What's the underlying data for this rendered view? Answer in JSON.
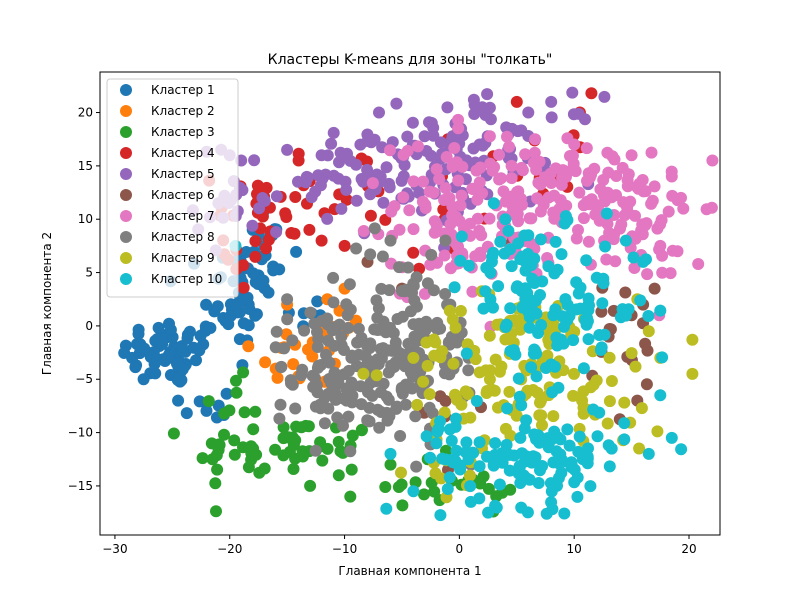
{
  "chart_data": {
    "type": "scatter",
    "title": "Кластеры K-means для зоны \"толкать\"",
    "xlabel": "Главная компонента 1",
    "ylabel": "Главная компонента 2",
    "xlim": [
      -31.3,
      22.7
    ],
    "ylim": [
      -19.6,
      23.8
    ],
    "xticks": [
      -30,
      -20,
      -10,
      0,
      10,
      20
    ],
    "yticks": [
      -15,
      -10,
      -5,
      0,
      5,
      10,
      15,
      20
    ],
    "grid": false,
    "legend_position": "top-left",
    "series": [
      {
        "name": "Кластер 1",
        "color": "#1f77b4",
        "centers": [
          [
            -25,
            -2.5,
            2.2,
            1.6,
            60
          ],
          [
            -19.5,
            3,
            1.4,
            2.5,
            40
          ],
          [
            -17,
            6.5,
            1.2,
            2.8,
            20
          ],
          [
            -22,
            -8,
            1.2,
            1.2,
            8
          ],
          [
            -13,
            1,
            1.2,
            1.2,
            6
          ]
        ],
        "extra": [
          [
            -28.5,
            -3
          ],
          [
            -27.5,
            -5
          ],
          [
            -24.5,
            -7
          ],
          [
            -18,
            9
          ],
          [
            -17,
            7.5
          ]
        ]
      },
      {
        "name": "Кластер 2",
        "color": "#ff7f0e",
        "centers": [
          [
            -13,
            -2.5,
            2.5,
            2,
            22
          ],
          [
            -11,
            0,
            1,
            1,
            6
          ]
        ],
        "extra": [
          [
            -15,
            2
          ],
          [
            -10,
            3.5
          ],
          [
            -9,
            0.5
          ],
          [
            -11.5,
            2.5
          ],
          [
            -16,
            -4
          ]
        ]
      },
      {
        "name": "Кластер 3",
        "color": "#2ca02c",
        "centers": [
          [
            -15,
            -11.5,
            4,
            1.4,
            55
          ],
          [
            -20,
            -7.5,
            1.3,
            1.3,
            8
          ],
          [
            -3,
            -14.5,
            3,
            1.2,
            15
          ],
          [
            2,
            -15.5,
            1.5,
            1,
            8
          ]
        ],
        "extra": [
          [
            -9.5,
            -16
          ],
          [
            -13,
            -15
          ],
          [
            -21.5,
            -12.5
          ],
          [
            -10.5,
            -14
          ],
          [
            -6,
            -13
          ]
        ]
      },
      {
        "name": "Кластер 4",
        "color": "#d62728",
        "centers": [
          [
            -17,
            11,
            2.2,
            2.2,
            28
          ],
          [
            -18,
            7,
            1.2,
            2.2,
            12
          ],
          [
            -8,
            12,
            2.5,
            2,
            10
          ],
          [
            -2,
            10,
            2,
            2,
            8
          ],
          [
            7,
            15.5,
            3,
            2,
            10
          ]
        ],
        "extra": [
          [
            11.5,
            21.8
          ],
          [
            10.5,
            20
          ],
          [
            -12,
            8
          ],
          [
            -10,
            7.5
          ],
          [
            -14,
            15.5
          ],
          [
            -1,
            17.5
          ],
          [
            5,
            21
          ]
        ]
      },
      {
        "name": "Кластер 5",
        "color": "#9467bd",
        "centers": [
          [
            -19,
            12,
            2,
            2.5,
            25
          ],
          [
            -5,
            14.5,
            4,
            2.5,
            90
          ],
          [
            4,
            17.5,
            4,
            2,
            45
          ],
          [
            -11,
            13.5,
            2,
            1.8,
            15
          ]
        ],
        "extra": [
          [
            -20,
            16
          ],
          [
            -19,
            15.5
          ],
          [
            -7,
            20
          ],
          [
            2,
            20.5
          ],
          [
            6,
            20
          ],
          [
            8,
            21
          ],
          [
            -15,
            16.5
          ],
          [
            -12,
            16
          ]
        ]
      },
      {
        "name": "Кластер 6",
        "color": "#8c564b",
        "centers": [
          [
            14.5,
            -2,
            2,
            4,
            15
          ],
          [
            -1,
            -8,
            1.5,
            2,
            6
          ]
        ],
        "extra": [
          [
            17,
            3.5
          ],
          [
            16,
            2
          ],
          [
            15,
            1
          ],
          [
            13,
            -1
          ],
          [
            -8,
            6
          ],
          [
            -5,
            3.5
          ],
          [
            4,
            8
          ],
          [
            15.5,
            -7
          ]
        ]
      },
      {
        "name": "Кластер 7",
        "color": "#e377c2",
        "centers": [
          [
            5.5,
            11.5,
            5.5,
            3,
            170
          ],
          [
            14,
            10,
            2.5,
            3,
            40
          ],
          [
            17,
            9,
            2,
            2.5,
            15
          ],
          [
            -1,
            6.5,
            2,
            1.8,
            20
          ],
          [
            3,
            14.5,
            3,
            2,
            20
          ]
        ],
        "extra": [
          [
            20.8,
            5.8
          ],
          [
            19,
            7
          ],
          [
            19.3,
            12
          ],
          [
            18.5,
            14
          ],
          [
            15,
            16
          ],
          [
            10,
            17
          ],
          [
            -5,
            5.5
          ],
          [
            -3,
            3
          ],
          [
            19.5,
            11
          ],
          [
            17.5,
            7.5
          ]
        ]
      },
      {
        "name": "Кластер 8",
        "color": "#7f7f7f",
        "centers": [
          [
            -7,
            -4,
            3.5,
            3.5,
            150
          ],
          [
            -12,
            -4,
            2,
            3,
            40
          ],
          [
            -2.5,
            -1,
            2,
            3,
            40
          ],
          [
            -5,
            5,
            2,
            2,
            15
          ]
        ],
        "extra": [
          [
            -11,
            4.5
          ],
          [
            -15,
            2.5
          ],
          [
            -16,
            -2
          ],
          [
            1,
            -13
          ],
          [
            3,
            -13
          ],
          [
            -6,
            8
          ]
        ]
      },
      {
        "name": "Кластер 9",
        "color": "#bcbd22",
        "centers": [
          [
            5,
            -4,
            5,
            3.5,
            120
          ],
          [
            14,
            -6,
            2,
            3.5,
            15
          ],
          [
            -1,
            -13,
            2,
            1.5,
            10
          ]
        ],
        "extra": [
          [
            20.3,
            -4.5
          ],
          [
            20.3,
            -1.3
          ],
          [
            16.5,
            -0.5
          ],
          [
            17.5,
            -3
          ],
          [
            15.5,
            2.5
          ],
          [
            -4,
            -3
          ]
        ]
      },
      {
        "name": "Кластер 10",
        "color": "#17becf",
        "centers": [
          [
            6.5,
            -12.5,
            4,
            2.2,
            110
          ],
          [
            8.5,
            1.5,
            4,
            3.5,
            110
          ],
          [
            0,
            -10.5,
            1.5,
            1.5,
            10
          ],
          [
            4,
            6,
            3,
            1.5,
            20
          ]
        ],
        "extra": [
          [
            -19.5,
            7.5
          ],
          [
            3,
            11.5
          ],
          [
            4,
            10
          ],
          [
            6,
            8.5
          ],
          [
            14.5,
            8
          ],
          [
            16,
            6
          ],
          [
            17.5,
            -6.5
          ],
          [
            18.5,
            -10.5
          ],
          [
            16.5,
            -12
          ],
          [
            -4,
            -15.5
          ],
          [
            2.5,
            -17.5
          ],
          [
            1,
            -16.5
          ],
          [
            -6,
            -12
          ],
          [
            -2,
            -11
          ]
        ]
      }
    ]
  }
}
